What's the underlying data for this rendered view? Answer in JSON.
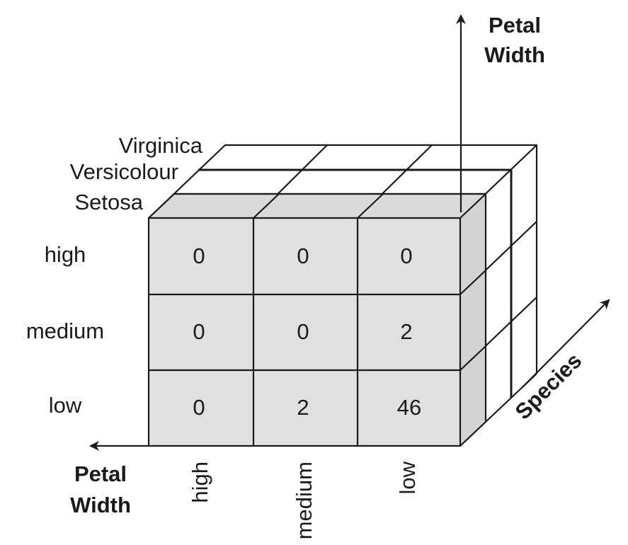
{
  "vertical_axis": {
    "title_line1": "Petal",
    "title_line2": "Width"
  },
  "horizontal_axis": {
    "title_line1": "Petal",
    "title_line2": "Width"
  },
  "depth_axis": {
    "title": "Species"
  },
  "species": [
    "Setosa",
    "Versicolour",
    "Virginica"
  ],
  "row_labels": [
    "high",
    "medium",
    "low"
  ],
  "column_labels": [
    "high",
    "medium",
    "low"
  ],
  "setosa_counts": [
    [
      "0",
      "0",
      "0"
    ],
    [
      "0",
      "0",
      "2"
    ],
    [
      "0",
      "2",
      "46"
    ]
  ],
  "colors": {
    "front_face": "#e0e0e2",
    "back_slices": "#ffffff",
    "lines": "#1a1a1a"
  }
}
